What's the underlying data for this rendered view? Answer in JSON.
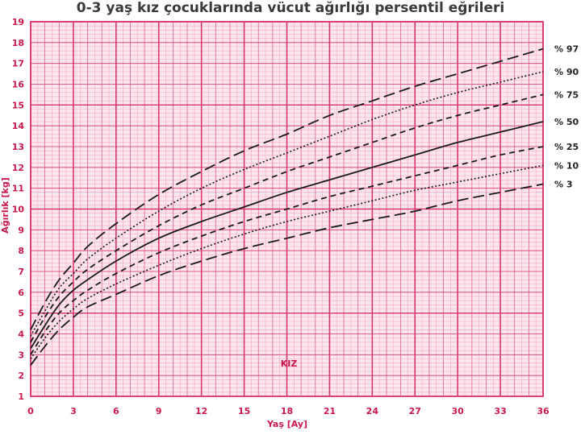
{
  "chart_data": {
    "type": "line",
    "title": "0-3 yaş kız çocuklarında vücut ağırlığı persentil eğrileri",
    "xlabel": "Yaş [Ay]",
    "ylabel": "Ağırlık [kg]",
    "inner_label": "KIZ",
    "xlim": [
      0,
      36
    ],
    "ylim": [
      1,
      19
    ],
    "x_ticks": [
      0,
      3,
      6,
      9,
      12,
      15,
      18,
      21,
      24,
      27,
      30,
      33,
      36
    ],
    "y_ticks": [
      1,
      2,
      3,
      4,
      5,
      6,
      7,
      8,
      9,
      10,
      11,
      12,
      13,
      14,
      15,
      16,
      17,
      18,
      19
    ],
    "grid": true,
    "legend_position": "right",
    "colors": {
      "grid_major": "#d9386a",
      "grid_minor": "#f4a9c0",
      "background": "#fde6ee",
      "curve": "#1a1a1a",
      "text": "#c8174a"
    },
    "series": [
      {
        "name": "% 97",
        "style": "long-dash",
        "x": [
          0,
          1,
          2,
          3,
          4,
          6,
          9,
          12,
          15,
          18,
          21,
          24,
          27,
          30,
          33,
          36
        ],
        "y": [
          4.2,
          5.5,
          6.6,
          7.4,
          8.2,
          9.3,
          10.7,
          11.8,
          12.8,
          13.6,
          14.5,
          15.2,
          15.9,
          16.5,
          17.1,
          17.7
        ]
      },
      {
        "name": "% 90",
        "style": "dotted",
        "x": [
          0,
          1,
          2,
          3,
          4,
          6,
          9,
          12,
          15,
          18,
          21,
          24,
          27,
          30,
          33,
          36
        ],
        "y": [
          3.9,
          5.1,
          6.2,
          6.9,
          7.6,
          8.6,
          9.9,
          11.0,
          11.9,
          12.7,
          13.5,
          14.3,
          15.0,
          15.6,
          16.1,
          16.6
        ]
      },
      {
        "name": "% 75",
        "style": "short-dash",
        "x": [
          0,
          1,
          2,
          3,
          4,
          6,
          9,
          12,
          15,
          18,
          21,
          24,
          27,
          30,
          33,
          36
        ],
        "y": [
          3.6,
          4.8,
          5.8,
          6.5,
          7.1,
          8.0,
          9.2,
          10.2,
          11.0,
          11.8,
          12.5,
          13.2,
          13.9,
          14.5,
          15.0,
          15.5
        ]
      },
      {
        "name": "% 50",
        "style": "solid",
        "x": [
          0,
          1,
          2,
          3,
          4,
          6,
          9,
          12,
          15,
          18,
          21,
          24,
          27,
          30,
          33,
          36
        ],
        "y": [
          3.3,
          4.4,
          5.4,
          6.1,
          6.6,
          7.5,
          8.6,
          9.4,
          10.1,
          10.8,
          11.4,
          12.0,
          12.6,
          13.2,
          13.7,
          14.2
        ]
      },
      {
        "name": "% 25",
        "style": "short-dash",
        "x": [
          0,
          1,
          2,
          3,
          4,
          6,
          9,
          12,
          15,
          18,
          21,
          24,
          27,
          30,
          33,
          36
        ],
        "y": [
          3.0,
          4.1,
          5.0,
          5.6,
          6.1,
          6.9,
          7.9,
          8.7,
          9.4,
          10.0,
          10.6,
          11.1,
          11.6,
          12.1,
          12.6,
          13.0
        ]
      },
      {
        "name": "% 10",
        "style": "dotted",
        "x": [
          0,
          1,
          2,
          3,
          4,
          6,
          9,
          12,
          15,
          18,
          21,
          24,
          27,
          30,
          33,
          36
        ],
        "y": [
          2.8,
          3.8,
          4.6,
          5.2,
          5.7,
          6.4,
          7.3,
          8.1,
          8.8,
          9.4,
          9.9,
          10.4,
          10.9,
          11.3,
          11.7,
          12.1
        ]
      },
      {
        "name": "% 3",
        "style": "long-dash",
        "x": [
          0,
          1,
          2,
          3,
          4,
          6,
          9,
          12,
          15,
          18,
          21,
          24,
          27,
          30,
          33,
          36
        ],
        "y": [
          2.5,
          3.4,
          4.2,
          4.8,
          5.3,
          5.9,
          6.8,
          7.5,
          8.1,
          8.6,
          9.1,
          9.5,
          9.9,
          10.4,
          10.8,
          11.2
        ]
      }
    ]
  }
}
